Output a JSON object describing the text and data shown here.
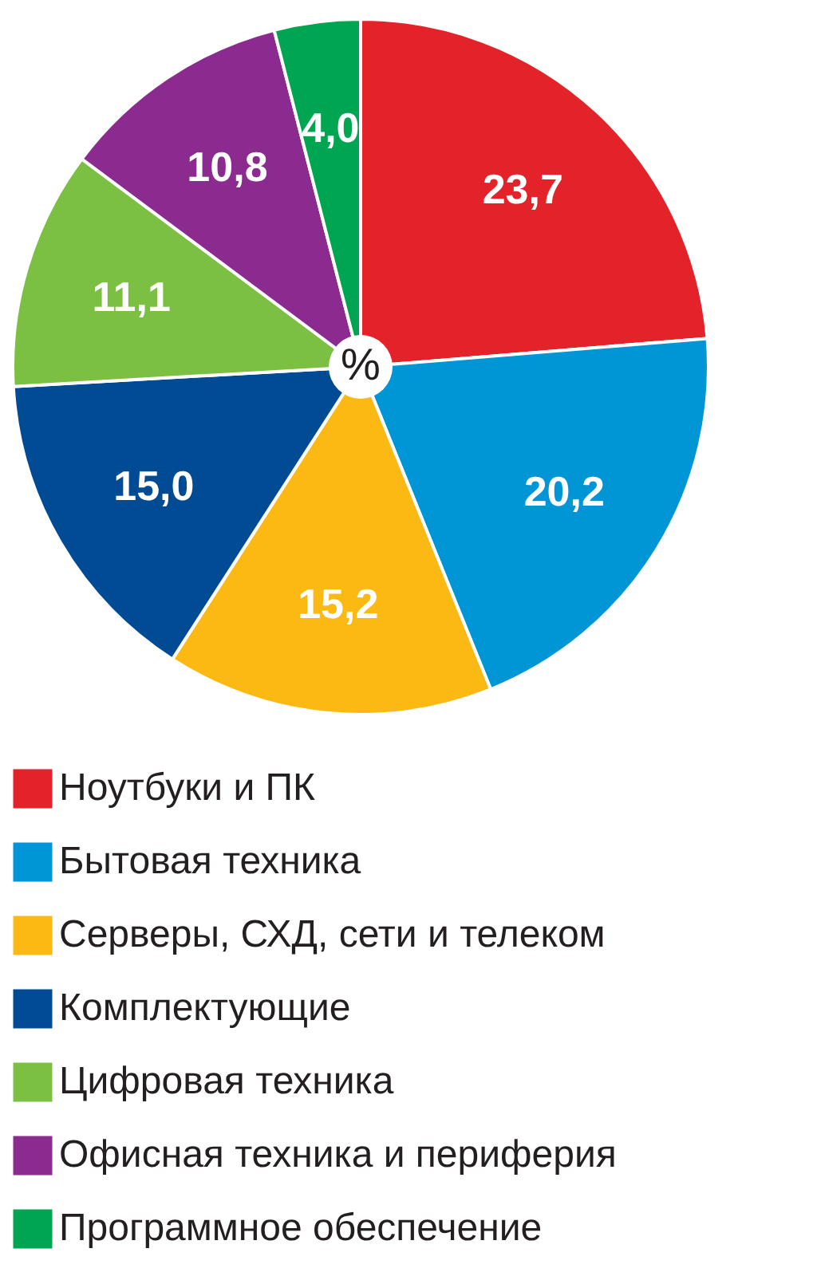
{
  "chart_data": {
    "type": "pie",
    "categories": [
      "Ноутбуки и ПК",
      "Бытовая техника",
      "Серверы, СХД, сети и телеком",
      "Комплектующие",
      "Цифровая техника",
      "Офисная техника и периферия",
      "Программное обеспечение"
    ],
    "values": [
      23.7,
      20.2,
      15.2,
      15.0,
      11.1,
      10.8,
      4.0
    ],
    "colors": [
      "#e42229",
      "#0096d6",
      "#fdb913",
      "#004b93",
      "#7cc043",
      "#8b2a8f",
      "#00a551"
    ],
    "value_labels": [
      "23,7",
      "20,2",
      "15,2",
      "15,0",
      "11,1",
      "10,8",
      "4,0"
    ],
    "annotations": [
      "%"
    ],
    "legend": "bottom"
  }
}
